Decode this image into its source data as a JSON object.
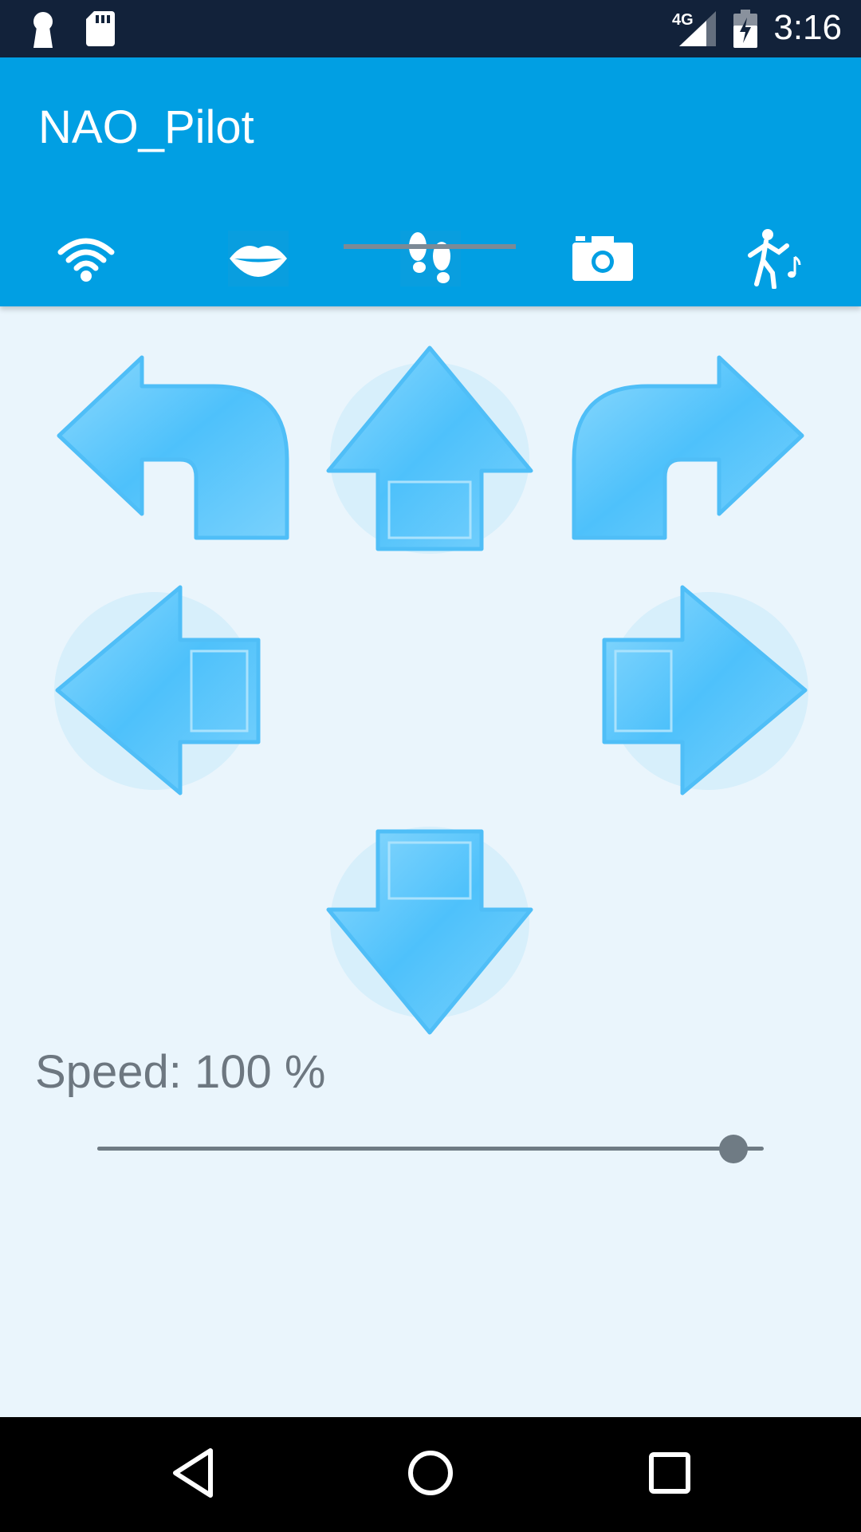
{
  "status_bar": {
    "time": "3:16",
    "network_label": "4G",
    "icons": [
      "keyhole-icon",
      "sd-card-icon",
      "cell-signal-icon",
      "battery-charging-icon"
    ]
  },
  "app": {
    "title": "NAO_Pilot"
  },
  "tabs": [
    {
      "icon": "wifi-icon"
    },
    {
      "icon": "lips-icon"
    },
    {
      "icon": "footsteps-icon",
      "selected": true
    },
    {
      "icon": "camera-icon"
    },
    {
      "icon": "dancing-figure-icon"
    }
  ],
  "controls": {
    "buttons": [
      "turn-left-arrow",
      "forward-arrow",
      "turn-right-arrow",
      "strafe-left-arrow",
      "strafe-right-arrow",
      "backward-arrow"
    ]
  },
  "speed": {
    "label": "Speed: 100 %",
    "value": 100,
    "max": 100
  },
  "colors": {
    "accent": "#019fe3",
    "status_bar": "#12223a",
    "background": "#eaf5fc",
    "arrow": "#5cc6fb"
  },
  "nav_bar": {
    "icons": [
      "back-icon",
      "home-icon",
      "recents-icon"
    ]
  }
}
